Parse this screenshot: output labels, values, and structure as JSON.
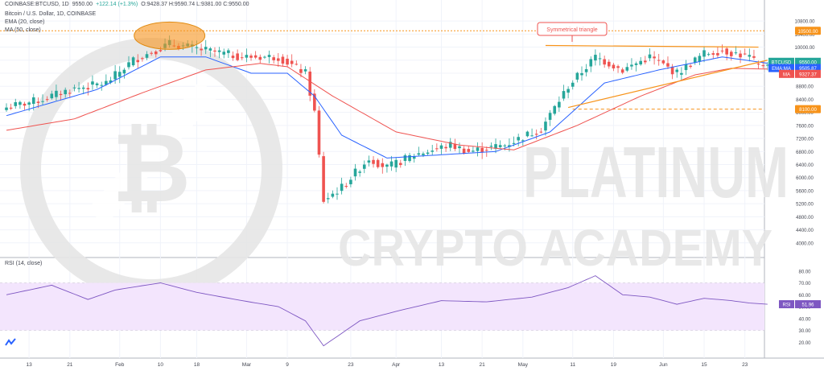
{
  "header": {
    "symbol": "COINBASE:BTCUSD, 1D",
    "price": "9550.00",
    "change": "+122.14 (+1.3%)",
    "ohlc": "O:9428.37 H:9590.74 L:9381.00 C:9550.00",
    "line1": "Bitcoin / U.S. Dollar, 1D, COINBASE",
    "line2": "EMA (20, close)",
    "line3": "MA (50, close)"
  },
  "rsi_label": "RSI (14, close)",
  "annotation": "Symmetrical triangle",
  "watermark": {
    "line1": "PLATINUM",
    "line2": "CRYPTO ACADEMY"
  },
  "price_tags": {
    "btcusd_label": "BTCUSD",
    "btcusd_value": "9550.00",
    "countdown": "17:46:02",
    "ema_label": "EMA:MA",
    "ema_value": "9505.87",
    "ma_label": "MA",
    "ma_value": "9327.37",
    "level_high": "10500.00",
    "level_low": "8100.00",
    "rsi_label": "RSI",
    "rsi_value": "51.96"
  },
  "colors": {
    "up": "#26a69a",
    "down": "#ef5350",
    "ema": "#2962ff",
    "ma": "#ef5350",
    "trend": "#f7931a",
    "rsi": "#7e57c2",
    "rsi_band": "#f3e5fd",
    "price_tag": "#26a69a"
  },
  "chart_data": [
    {
      "type": "candlestick",
      "title": "Bitcoin / U.S. Dollar, 1D, COINBASE",
      "ylim": [
        3600,
        11000
      ],
      "y_ticks": [
        "10800.00",
        "10400.00",
        "10000.00",
        "9600.00",
        "9200.00",
        "8800.00",
        "8400.00",
        "8000.00",
        "7600.00",
        "7200.00",
        "6800.00",
        "6400.00",
        "6000.00",
        "5600.00",
        "5200.00",
        "4800.00",
        "4400.00",
        "4000.00"
      ],
      "x_ticks": [
        "13",
        "21",
        "Feb",
        "10",
        "18",
        "Mar",
        "9",
        "23",
        "Apr",
        "13",
        "21",
        "May",
        "11",
        "19",
        "Jun",
        "15",
        "23"
      ],
      "series": [
        {
          "name": "BTCUSD",
          "anchors": [
            [
              0,
              8150
            ],
            [
              8,
              8400
            ],
            [
              14,
              8700
            ],
            [
              22,
              8900
            ],
            [
              28,
              9600
            ],
            [
              36,
              10100
            ],
            [
              44,
              9900
            ],
            [
              52,
              9700
            ],
            [
              60,
              9700
            ],
            [
              66,
              9200
            ],
            [
              68,
              8000
            ],
            [
              70,
              5300
            ],
            [
              74,
              5700
            ],
            [
              80,
              6600
            ],
            [
              84,
              6300
            ],
            [
              90,
              6700
            ],
            [
              98,
              7000
            ],
            [
              102,
              6800
            ],
            [
              110,
              7000
            ],
            [
              118,
              7500
            ],
            [
              124,
              8800
            ],
            [
              130,
              9700
            ],
            [
              136,
              9300
            ],
            [
              142,
              9700
            ],
            [
              148,
              9200
            ],
            [
              154,
              9800
            ],
            [
              158,
              9900
            ],
            [
              164,
              9700
            ],
            [
              166,
              9400
            ],
            [
              168,
              9550
            ]
          ]
        },
        {
          "name": "EMA (20, close)",
          "anchors": [
            [
              0,
              7900
            ],
            [
              20,
              8700
            ],
            [
              34,
              9700
            ],
            [
              44,
              9700
            ],
            [
              54,
              9200
            ],
            [
              62,
              9200
            ],
            [
              68,
              8500
            ],
            [
              74,
              7300
            ],
            [
              84,
              6600
            ],
            [
              96,
              6700
            ],
            [
              108,
              6800
            ],
            [
              120,
              7400
            ],
            [
              132,
              8900
            ],
            [
              144,
              9300
            ],
            [
              158,
              9700
            ],
            [
              168,
              9506
            ]
          ]
        },
        {
          "name": "MA (50, close)",
          "anchors": [
            [
              0,
              7450
            ],
            [
              15,
              7800
            ],
            [
              30,
              8600
            ],
            [
              44,
              9300
            ],
            [
              56,
              9500
            ],
            [
              62,
              9400
            ],
            [
              72,
              8500
            ],
            [
              86,
              7400
            ],
            [
              100,
              7000
            ],
            [
              112,
              6850
            ],
            [
              126,
              7600
            ],
            [
              140,
              8500
            ],
            [
              152,
              9150
            ],
            [
              160,
              9350
            ],
            [
              168,
              9327
            ]
          ]
        }
      ],
      "levels": [
        10500,
        8100
      ],
      "annotations": [
        "Symmetrical triangle"
      ]
    },
    {
      "type": "line",
      "title": "RSI (14, close)",
      "ylim": [
        10,
        90
      ],
      "y_ticks": [
        "80.00",
        "70.00",
        "60.00",
        "50.00",
        "40.00",
        "30.00",
        "20.00"
      ],
      "band": [
        30,
        70
      ],
      "series": [
        {
          "name": "RSI",
          "anchors": [
            [
              0,
              60
            ],
            [
              10,
              68
            ],
            [
              18,
              56
            ],
            [
              24,
              64
            ],
            [
              34,
              70
            ],
            [
              42,
              62
            ],
            [
              52,
              55
            ],
            [
              60,
              50
            ],
            [
              66,
              38
            ],
            [
              70,
              17
            ],
            [
              78,
              38
            ],
            [
              86,
              46
            ],
            [
              96,
              55
            ],
            [
              106,
              54
            ],
            [
              116,
              58
            ],
            [
              124,
              66
            ],
            [
              130,
              76
            ],
            [
              136,
              60
            ],
            [
              142,
              58
            ],
            [
              148,
              52
            ],
            [
              154,
              57
            ],
            [
              160,
              55
            ],
            [
              164,
              53
            ],
            [
              168,
              52
            ]
          ]
        }
      ]
    }
  ]
}
